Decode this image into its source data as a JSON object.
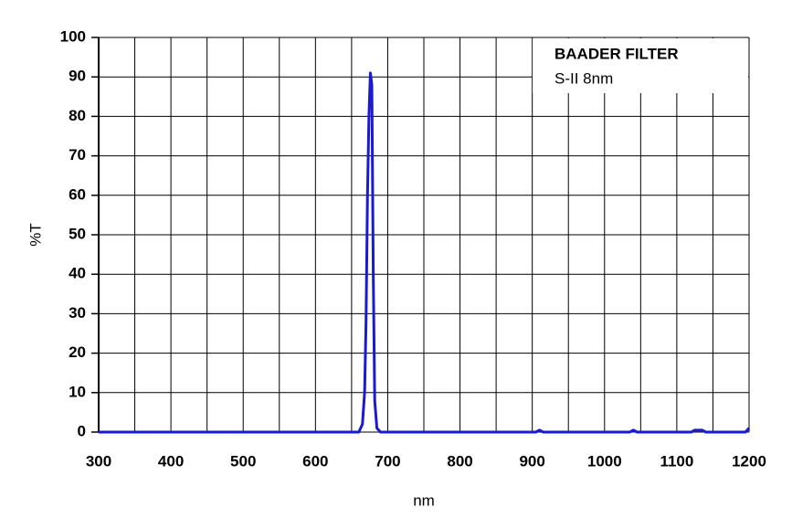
{
  "chart_data": {
    "type": "line",
    "legend_title": "BAADER FILTER",
    "xlabel": "nm",
    "ylabel": "%T",
    "x": [
      300,
      660,
      665,
      668,
      670,
      672,
      674,
      676,
      678,
      680,
      682,
      685,
      690,
      905,
      910,
      915,
      1035,
      1040,
      1045,
      1120,
      1125,
      1135,
      1140,
      1195,
      1200
    ],
    "series": [
      {
        "name": "S-II 8nm",
        "color": "#1a1ad0",
        "values": [
          0,
          0,
          2,
          10,
          28,
          60,
          80,
          91,
          88,
          40,
          8,
          1,
          0,
          0,
          0.5,
          0,
          0,
          0.5,
          0,
          0,
          0.5,
          0.5,
          0,
          0,
          1
        ]
      }
    ],
    "xlim": [
      300,
      1200
    ],
    "ylim": [
      0,
      100
    ],
    "xticks": [
      300,
      400,
      500,
      600,
      700,
      800,
      900,
      1000,
      1100,
      1200
    ],
    "xminorticks": [
      350,
      450,
      550,
      650,
      750,
      850,
      950,
      1050,
      1150
    ],
    "yticks": [
      0,
      10,
      20,
      30,
      40,
      50,
      60,
      70,
      80,
      90,
      100
    ],
    "grid": true,
    "legend": "upper right"
  }
}
